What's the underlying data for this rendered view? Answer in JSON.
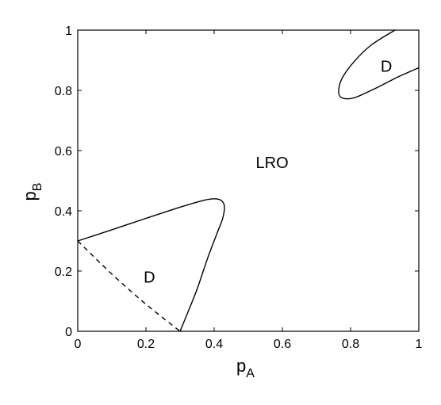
{
  "chart_data": {
    "type": "line",
    "title": "",
    "xlabel": {
      "base": "p",
      "sub": "A"
    },
    "ylabel": {
      "base": "p",
      "sub": "B"
    },
    "xlim": [
      0,
      1
    ],
    "ylim": [
      0,
      1
    ],
    "xticks": [
      0,
      0.2,
      0.4,
      0.6,
      0.8,
      1
    ],
    "yticks": [
      0,
      0.2,
      0.4,
      0.6,
      0.8,
      1
    ],
    "xtick_labels": [
      "0",
      "0.2",
      "0.4",
      "0.6",
      "0.8",
      "1"
    ],
    "ytick_labels": [
      "0",
      "0.2",
      "0.4",
      "0.6",
      "0.8",
      "1"
    ],
    "grid": false,
    "series": [
      {
        "style": "solid",
        "color": "#000000",
        "points": [
          [
            0,
            0.3
          ],
          [
            0.1,
            0.337
          ],
          [
            0.2,
            0.375
          ],
          [
            0.3,
            0.412
          ],
          [
            0.37,
            0.435
          ],
          [
            0.4,
            0.44
          ],
          [
            0.42,
            0.435
          ],
          [
            0.43,
            0.415
          ],
          [
            0.425,
            0.375
          ],
          [
            0.41,
            0.33
          ],
          [
            0.38,
            0.24
          ],
          [
            0.35,
            0.14
          ],
          [
            0.32,
            0.055
          ],
          [
            0.3,
            0
          ]
        ]
      },
      {
        "style": "dashed",
        "color": "#000000",
        "points": [
          [
            0,
            0.3
          ],
          [
            0.1,
            0.19
          ],
          [
            0.2,
            0.09
          ],
          [
            0.3,
            0
          ]
        ]
      },
      {
        "style": "solid",
        "color": "#000000",
        "points": [
          [
            0.93,
            1.0
          ],
          [
            0.86,
            0.95
          ],
          [
            0.81,
            0.895
          ],
          [
            0.775,
            0.84
          ],
          [
            0.765,
            0.795
          ],
          [
            0.775,
            0.775
          ],
          [
            0.81,
            0.775
          ],
          [
            0.87,
            0.805
          ],
          [
            0.94,
            0.845
          ],
          [
            1.0,
            0.875
          ]
        ]
      }
    ],
    "annotations": [
      {
        "text": "D",
        "x": 0.21,
        "y": 0.18
      },
      {
        "text": "LRO",
        "x": 0.57,
        "y": 0.56
      },
      {
        "text": "D",
        "x": 0.905,
        "y": 0.88
      }
    ]
  }
}
